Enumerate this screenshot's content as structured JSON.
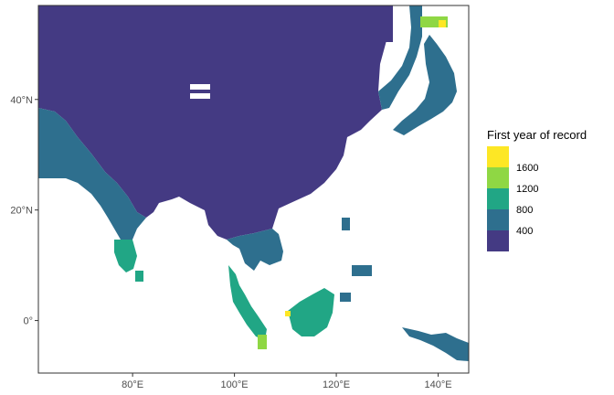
{
  "map": {
    "legend": {
      "title": "First year of record",
      "entries": [
        {
          "label": "",
          "color": "#FDE725"
        },
        {
          "label": "1600",
          "color": "#8FD744"
        },
        {
          "label": "1200",
          "color": "#21A685"
        },
        {
          "label": "800",
          "color": "#2E6F8E"
        },
        {
          "label": "400",
          "color": "#443A83"
        }
      ]
    },
    "x_axis": {
      "ticks": [
        {
          "label": "80°E",
          "lon": 80
        },
        {
          "label": "100°E",
          "lon": 100
        },
        {
          "label": "120°E",
          "lon": 120
        },
        {
          "label": "140°E",
          "lon": 140
        }
      ],
      "range": [
        61.5,
        146
      ]
    },
    "y_axis": {
      "ticks": [
        {
          "label": "40°N",
          "lat": 40
        },
        {
          "label": "20°N",
          "lat": 20
        },
        {
          "label": "0°",
          "lat": 0
        }
      ],
      "range": [
        -9.5,
        57
      ]
    },
    "colors": {
      "c400": "#443A83",
      "c800": "#2E6F8E",
      "c1200": "#21A685",
      "c1600": "#8FD744",
      "c2000": "#FDE725"
    }
  }
}
